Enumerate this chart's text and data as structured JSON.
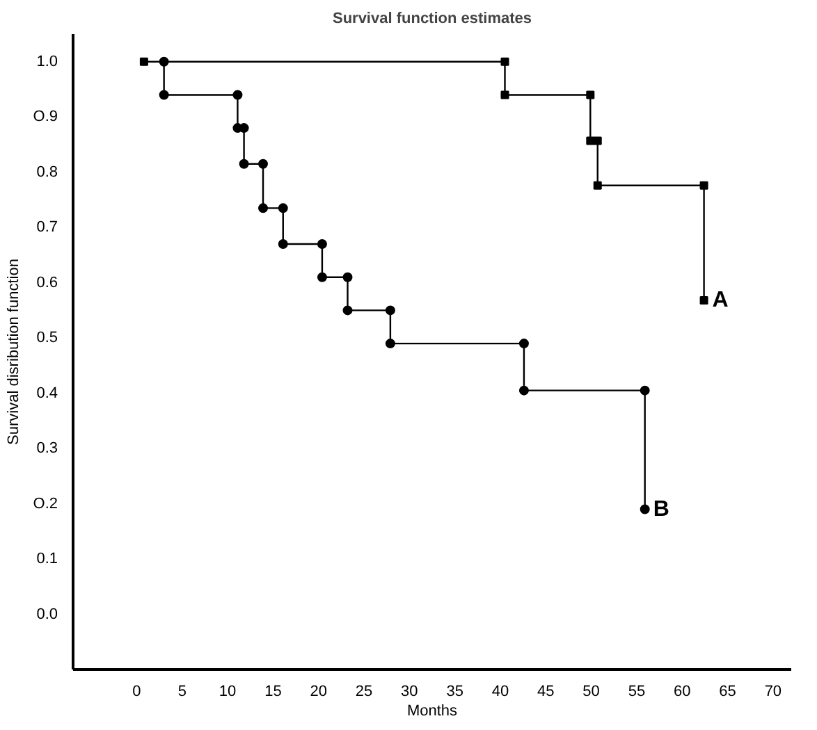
{
  "chart_data": {
    "type": "line",
    "title": "Survival function estimates",
    "xlabel": "Months",
    "ylabel": "Survival disribution function",
    "series": [
      {
        "name": "A",
        "color": "#000000",
        "marker": "square",
        "x": [
          0.8,
          40.5,
          40.5,
          49.9,
          49.9,
          50.7,
          50.7,
          62.4,
          62.4
        ],
        "values": [
          1.0,
          1.0,
          0.94,
          0.94,
          0.857,
          0.857,
          0.776,
          0.776,
          0.568
        ]
      },
      {
        "name": "B",
        "color": "#000000",
        "marker": "circle",
        "x": [
          3,
          3,
          11.1,
          11.1,
          11.8,
          11.8,
          13.9,
          13.9,
          16.1,
          16.1,
          20.4,
          20.4,
          23.2,
          23.2,
          27.9,
          27.9,
          42.6,
          42.6,
          55.9,
          55.9
        ],
        "values": [
          1.0,
          0.94,
          0.94,
          0.88,
          0.88,
          0.815,
          0.815,
          0.735,
          0.735,
          0.67,
          0.67,
          0.61,
          0.61,
          0.55,
          0.55,
          0.49,
          0.49,
          0.405,
          0.405,
          0.19
        ]
      }
    ],
    "xlim": [
      -7,
      72
    ],
    "xticks": [
      0,
      5,
      10,
      15,
      20,
      25,
      30,
      35,
      40,
      45,
      50,
      55,
      60,
      65,
      70
    ],
    "ylim": [
      -0.1,
      1.05
    ],
    "yticks": [
      {
        "value": 0.0,
        "label": "0.0"
      },
      0.1,
      {
        "value": 0.2,
        "label": "O.2"
      },
      0.3,
      0.4,
      0.5,
      0.6,
      0.7,
      0.8,
      {
        "value": 0.9,
        "label": "O.9"
      },
      {
        "value": 1.0,
        "label": "1.0"
      }
    ],
    "grid": false
  }
}
